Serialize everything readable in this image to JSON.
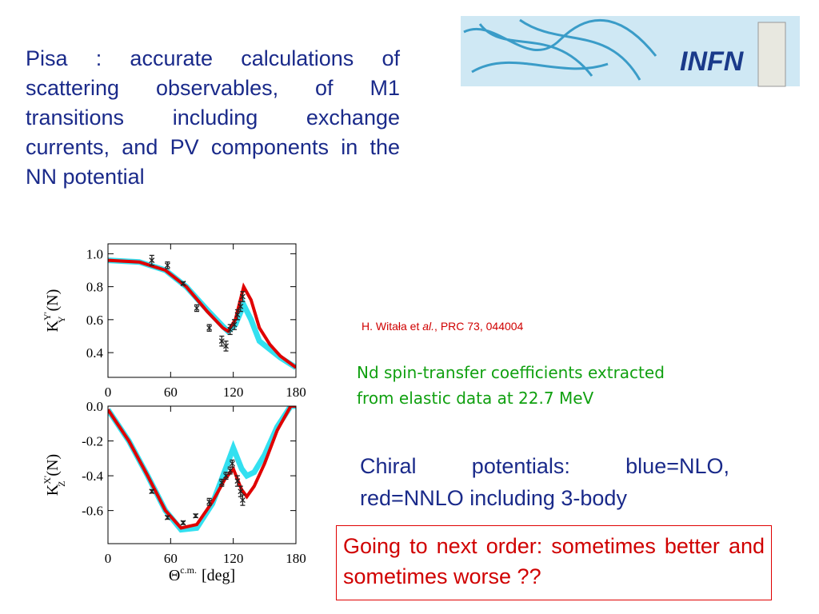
{
  "logo": {
    "text": "INFN"
  },
  "intro": "Pisa : accurate calculations of scattering observables, of M1 transitions including exchange currents, and PV components in the NN potential",
  "citation": {
    "authors": "H. Witała et ",
    "etal": "al.",
    "ref": ", PRC 73, 044004"
  },
  "caption": "Nd spin-transfer coefficients extracted from elastic data at 22.7 MeV",
  "chiral": "Chiral potentials: blue=NLO, red=NNLO including 3-body",
  "note": "Going to next order: sometimes better and sometimes worse ??",
  "chart_data": [
    {
      "type": "scatter",
      "ylabel": {
        "base": "K",
        "sub": "Y",
        "sup": "Y'",
        "rest": "(N)"
      },
      "xlim": [
        0,
        180
      ],
      "xticks": [
        0,
        60,
        120,
        180
      ],
      "ylim": [
        0.25,
        1.06
      ],
      "yticks": [
        0.4,
        0.6,
        0.8,
        {
          "value": 1.0,
          "label": "1.0"
        }
      ],
      "points": {
        "x": [
          42,
          57,
          72,
          85,
          97,
          109,
          113,
          117,
          121,
          124,
          127,
          129
        ],
        "values": [
          0.96,
          0.93,
          0.82,
          0.67,
          0.55,
          0.47,
          0.44,
          0.54,
          0.57,
          0.63,
          0.68,
          0.74
        ],
        "errors": [
          0.03,
          0.02,
          0.01,
          0.02,
          0.02,
          0.03,
          0.03,
          0.03,
          0.03,
          0.03,
          0.03,
          0.03
        ]
      },
      "curves": [
        {
          "name": "NLO",
          "color": "#33e0f0",
          "x": [
            0,
            30,
            55,
            75,
            95,
            110,
            115,
            122,
            130,
            137,
            145,
            155,
            165,
            180
          ],
          "values": [
            0.96,
            0.95,
            0.9,
            0.8,
            0.66,
            0.56,
            0.53,
            0.57,
            0.69,
            0.6,
            0.47,
            0.42,
            0.37,
            0.31
          ]
        },
        {
          "name": "NNLO",
          "color": "#e00000",
          "x": [
            0,
            30,
            55,
            75,
            95,
            110,
            115,
            122,
            130,
            137,
            145,
            155,
            165,
            180
          ],
          "values": [
            0.96,
            0.95,
            0.9,
            0.8,
            0.65,
            0.55,
            0.53,
            0.6,
            0.8,
            0.72,
            0.55,
            0.45,
            0.38,
            0.31
          ]
        }
      ]
    },
    {
      "type": "scatter",
      "xlabel": {
        "base": "Θ",
        "sup": "c.m.",
        "rest": "[deg]"
      },
      "ylabel": {
        "base": "K",
        "sub": "Z",
        "sup": "X'",
        "rest": "(N)"
      },
      "xlim": [
        0,
        180
      ],
      "xticks": [
        0,
        60,
        120,
        180
      ],
      "ylim": [
        -0.79,
        0.0
      ],
      "yticks": [
        -0.6,
        -0.4,
        -0.2,
        {
          "value": 0.0,
          "label": "0.0"
        }
      ],
      "points": {
        "x": [
          42,
          57,
          72,
          84,
          97,
          109,
          113,
          117,
          119,
          124,
          127,
          129
        ],
        "values": [
          -0.49,
          -0.64,
          -0.67,
          -0.63,
          -0.55,
          -0.44,
          -0.4,
          -0.37,
          -0.33,
          -0.43,
          -0.49,
          -0.54
        ],
        "errors": [
          0.01,
          0.01,
          0.01,
          0.01,
          0.02,
          0.02,
          0.02,
          0.02,
          0.02,
          0.03,
          0.03,
          0.03
        ]
      },
      "curves": [
        {
          "name": "NLO",
          "color": "#33e0f0",
          "x": [
            0,
            20,
            38,
            55,
            70,
            85,
            100,
            112,
            120,
            128,
            133,
            140,
            150,
            162,
            175,
            180
          ],
          "values": [
            -0.02,
            -0.2,
            -0.4,
            -0.6,
            -0.71,
            -0.7,
            -0.56,
            -0.37,
            -0.24,
            -0.36,
            -0.4,
            -0.38,
            -0.28,
            -0.12,
            0.0,
            0.0
          ]
        },
        {
          "name": "NNLO",
          "color": "#e00000",
          "x": [
            0,
            20,
            38,
            55,
            70,
            85,
            100,
            112,
            120,
            128,
            133,
            140,
            150,
            162,
            175,
            180
          ],
          "values": [
            -0.02,
            -0.2,
            -0.4,
            -0.6,
            -0.7,
            -0.68,
            -0.55,
            -0.42,
            -0.36,
            -0.48,
            -0.52,
            -0.46,
            -0.33,
            -0.14,
            0.0,
            0.0
          ]
        }
      ]
    }
  ]
}
